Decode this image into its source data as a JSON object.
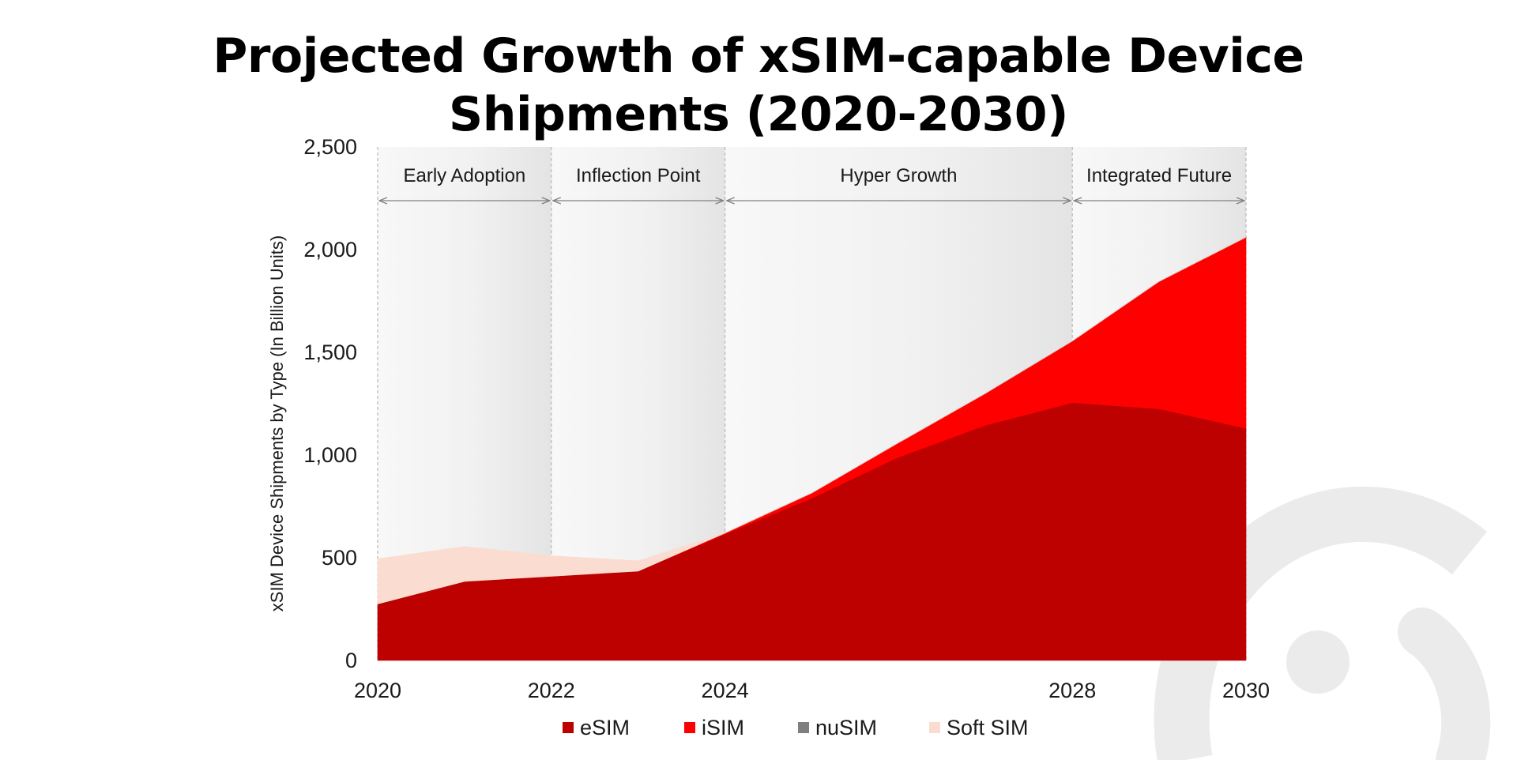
{
  "title": {
    "line1": "Projected Growth of xSIM-capable Device",
    "line2": "Shipments (2020-2030)"
  },
  "colors": {
    "esim": "#bd0000",
    "isim": "#ff0000",
    "nusim": "#7f7f7f",
    "softsim": "#fbdcd0",
    "watermark": "#ebebeb"
  },
  "chart_data": {
    "type": "area",
    "stacked": true,
    "ylabel": "xSIM Device Shipments by Type (In Billion Units)",
    "ylim": [
      0,
      2500
    ],
    "xlim": [
      2020,
      2030
    ],
    "y_ticks": [
      0,
      500,
      1000,
      1500,
      2000,
      2500
    ],
    "y_tick_labels": [
      "0",
      "500",
      "1,000",
      "1,500",
      "2,000",
      "2,500"
    ],
    "x_ticks": [
      2020,
      2022,
      2024,
      2028,
      2030
    ],
    "x_tick_labels": [
      "2020",
      "2022",
      "2024",
      "2028",
      "2030"
    ],
    "x": [
      2020,
      2021,
      2022,
      2023,
      2024,
      2025,
      2026,
      2027,
      2028,
      2029,
      2030
    ],
    "series": [
      {
        "name": "eSIM",
        "color": "#bd0000",
        "values": [
          275,
          385,
          410,
          435,
          615,
          790,
          990,
          1145,
          1255,
          1225,
          1130
        ]
      },
      {
        "name": "iSIM",
        "color": "#ff0000",
        "values": [
          0,
          0,
          0,
          0,
          5,
          25,
          70,
          155,
          300,
          620,
          930
        ]
      },
      {
        "name": "nuSIM",
        "color": "#7f7f7f",
        "values": [
          0,
          0,
          0,
          0,
          0,
          0,
          0,
          0,
          0,
          0,
          0
        ]
      },
      {
        "name": "Soft SIM",
        "color": "#fbdcd0",
        "values": [
          220,
          170,
          100,
          50,
          0,
          0,
          0,
          0,
          0,
          0,
          0
        ]
      }
    ],
    "phases": [
      {
        "label": "Early Adoption",
        "start": 2020,
        "end": 2022
      },
      {
        "label": "Inflection Point",
        "start": 2022,
        "end": 2024
      },
      {
        "label": "Hyper Growth",
        "start": 2024,
        "end": 2028
      },
      {
        "label": "Integrated Future",
        "start": 2028,
        "end": 2030
      }
    ],
    "legend_position": "bottom"
  }
}
